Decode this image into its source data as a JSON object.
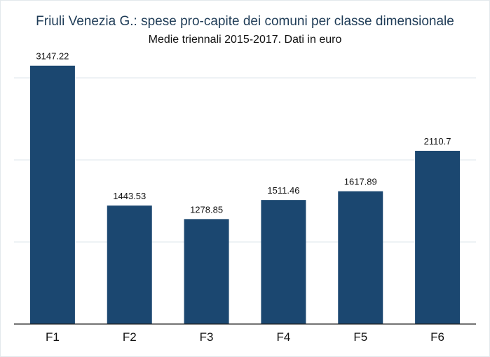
{
  "chart_data": {
    "type": "bar",
    "title": "Friuli Venezia G.: spese pro-capite dei comuni per classe dimensionale",
    "subtitle": "Medie triennali 2015-2017. Dati in euro",
    "xlabel": "",
    "ylabel": "",
    "categories": [
      "F1",
      "F2",
      "F3",
      "F4",
      "F5",
      "F6"
    ],
    "values": [
      3147.22,
      1443.53,
      1278.85,
      1511.46,
      1617.89,
      2110.7
    ],
    "value_labels": [
      "3147.22",
      "1443.53",
      "1278.85",
      "1511.46",
      "1617.89",
      "2110.7"
    ],
    "ylim": [
      0,
      3350
    ],
    "gridlines": [
      1000,
      2000,
      3000
    ],
    "grid": true,
    "legend": "none",
    "colors": {
      "bar": "#1b4770",
      "grid": "#e9eef2",
      "axis": "#222222",
      "title": "#1f3c57"
    }
  }
}
